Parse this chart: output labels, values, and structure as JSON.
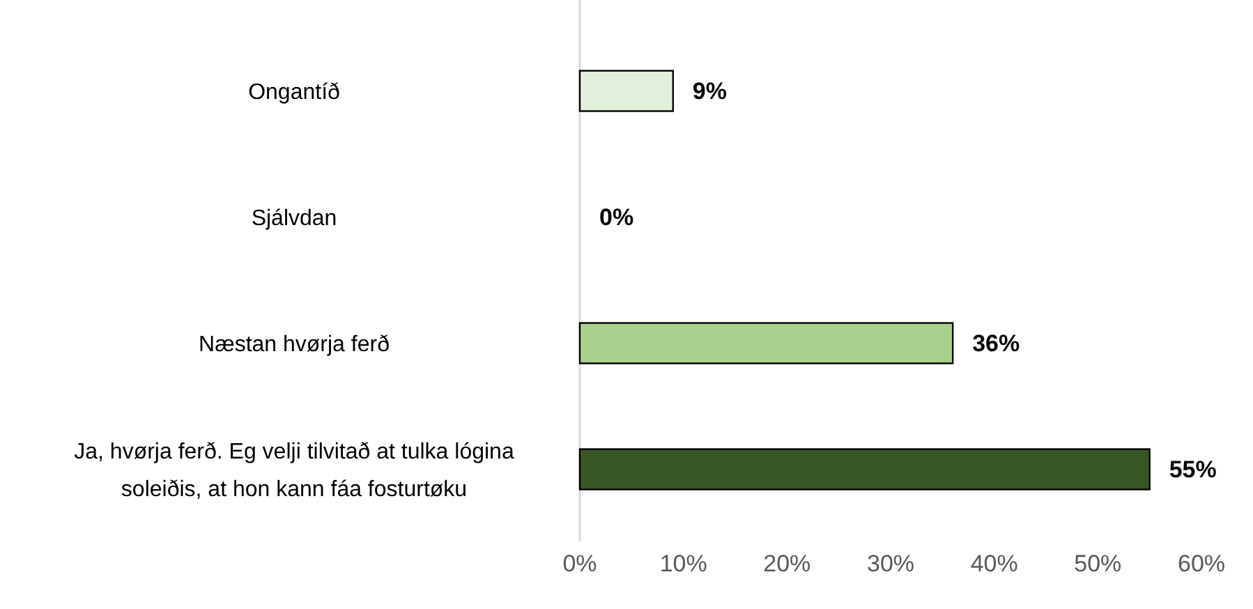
{
  "chart_data": {
    "type": "bar",
    "orientation": "horizontal",
    "categories": [
      "Ongantíð",
      "Sjálvdan",
      "Næstan hvørja ferð",
      "Ja, hvørja ferð. Eg velji tilvitað at tulka lógina soleiðis, at hon kann fáa fosturtøku"
    ],
    "values": [
      9,
      0,
      36,
      55
    ],
    "colors": [
      "#e2efda",
      "#c5e0b4",
      "#a9d18e",
      "#375623"
    ],
    "value_labels": [
      "9%",
      "0%",
      "36%",
      "55%"
    ],
    "xlim": [
      0,
      60
    ],
    "xticks": [
      {
        "value": 0,
        "label": "0%"
      },
      {
        "value": 10,
        "label": "10%"
      },
      {
        "value": 20,
        "label": "20%"
      },
      {
        "value": 30,
        "label": "30%"
      },
      {
        "value": 40,
        "label": "40%"
      },
      {
        "value": 50,
        "label": "50%"
      },
      {
        "value": 60,
        "label": "60%"
      }
    ],
    "grid": false
  }
}
